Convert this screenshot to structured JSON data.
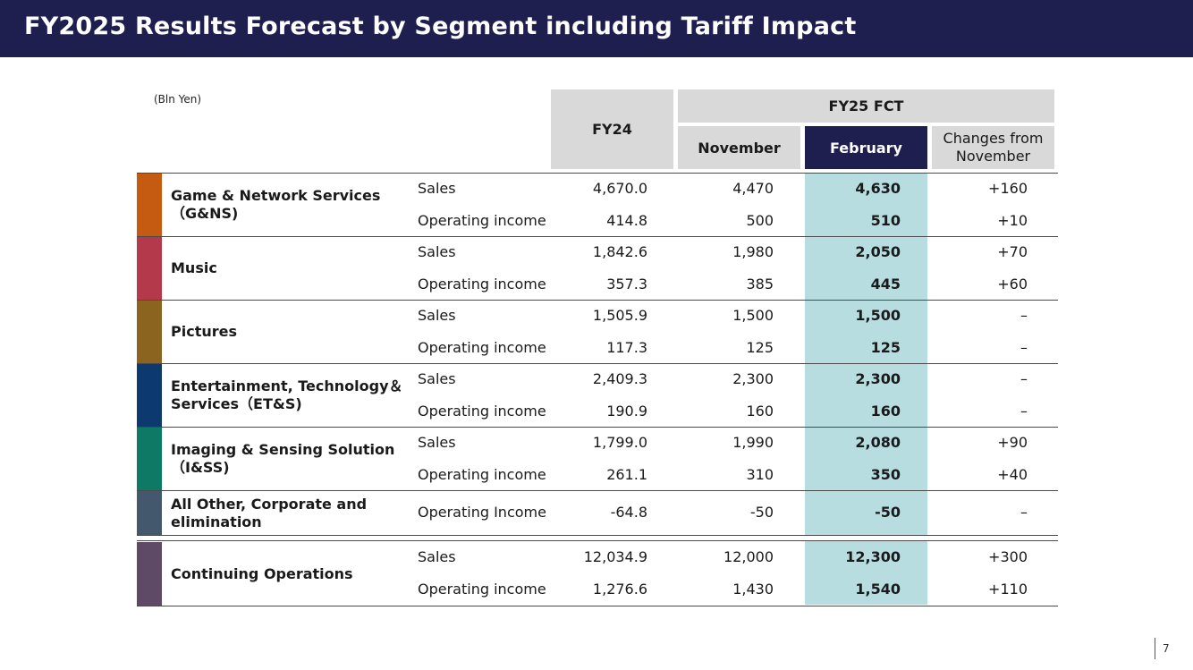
{
  "title": "FY2025 Results Forecast by Segment including Tariff Impact",
  "unit_note": "(Bln Yen)",
  "columns": {
    "fy24": "FY24",
    "fy25": "FY25 FCT",
    "november": "November",
    "february": "February",
    "changes": "Changes from November"
  },
  "colors": {
    "header_bg": "#1f1f4f",
    "highlight": "#b7dde1",
    "header_gray": "#d9d9d9"
  },
  "segments": [
    {
      "name": "Game & Network Services（G&NS)",
      "color": "#c55a11",
      "rows": [
        {
          "metric": "Sales",
          "fy24": "4,670.0",
          "nov": "4,470",
          "feb": "4,630",
          "chg": "+160"
        },
        {
          "metric": "Operating income",
          "fy24": "414.8",
          "nov": "500",
          "feb": "510",
          "chg": "+10"
        }
      ]
    },
    {
      "name": "Music",
      "color": "#b3394b",
      "rows": [
        {
          "metric": "Sales",
          "fy24": "1,842.6",
          "nov": "1,980",
          "feb": "2,050",
          "chg": "+70"
        },
        {
          "metric": "Operating income",
          "fy24": "357.3",
          "nov": "385",
          "feb": "445",
          "chg": "+60"
        }
      ]
    },
    {
      "name": "Pictures",
      "color": "#8b6420",
      "rows": [
        {
          "metric": "Sales",
          "fy24": "1,505.9",
          "nov": "1,500",
          "feb": "1,500",
          "chg": "–"
        },
        {
          "metric": "Operating income",
          "fy24": "117.3",
          "nov": "125",
          "feb": "125",
          "chg": "–"
        }
      ]
    },
    {
      "name": "Entertainment, Technology＆ Services（ET&S)",
      "color": "#0d3a6e",
      "rows": [
        {
          "metric": "Sales",
          "fy24": "2,409.3",
          "nov": "2,300",
          "feb": "2,300",
          "chg": "–"
        },
        {
          "metric": "Operating income",
          "fy24": "190.9",
          "nov": "160",
          "feb": "160",
          "chg": "–"
        }
      ]
    },
    {
      "name": "Imaging & Sensing Solution（I&SS)",
      "color": "#0e7a66",
      "rows": [
        {
          "metric": "Sales",
          "fy24": "1,799.0",
          "nov": "1,990",
          "feb": "2,080",
          "chg": "+90"
        },
        {
          "metric": "Operating income",
          "fy24": "261.1",
          "nov": "310",
          "feb": "350",
          "chg": "+40"
        }
      ]
    },
    {
      "name": "All Other, Corporate and elimination",
      "color": "#44586d",
      "rows": [
        {
          "metric": "Operating Income",
          "fy24": "-64.8",
          "nov": "-50",
          "feb": "-50",
          "chg": "–"
        }
      ]
    },
    {
      "name": "Continuing Operations",
      "color": "#5e4a66",
      "rows": [
        {
          "metric": "Sales",
          "fy24": "12,034.9",
          "nov": "12,000",
          "feb": "12,300",
          "chg": "+300"
        },
        {
          "metric": "Operating income",
          "fy24": "1,276.6",
          "nov": "1,430",
          "feb": "1,540",
          "chg": "+110"
        }
      ]
    }
  ],
  "page_number": "7"
}
